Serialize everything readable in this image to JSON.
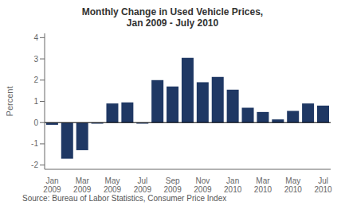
{
  "chart_data": {
    "type": "bar",
    "title": "Monthly Change in Used Vehicle Prices,",
    "subtitle": "Jan 2009 - July 2010",
    "ylabel": "Percent",
    "annotations": [
      "Source: Bureau of Labor Statistics, Consumer Price Index"
    ],
    "categories": [
      "Jan 2009",
      null,
      "Mar 2009",
      null,
      "May 2009",
      null,
      "Jul 2009",
      null,
      "Sep 2009",
      null,
      "Nov 2009",
      null,
      "Jan 2010",
      null,
      "Mar 2010",
      null,
      "May 2010",
      null,
      "Jul 2010"
    ],
    "values": [
      -0.1,
      -1.7,
      -1.3,
      -0.05,
      0.9,
      0.95,
      -0.05,
      2.0,
      1.7,
      3.05,
      1.9,
      2.15,
      1.55,
      0.7,
      0.5,
      0.15,
      0.55,
      0.9,
      0.8
    ],
    "color": "#1F3864",
    "ylim": [
      -2.2,
      4.2
    ],
    "yticks": [
      -2,
      -1,
      0,
      1,
      2,
      3,
      4
    ],
    "grid": false
  }
}
